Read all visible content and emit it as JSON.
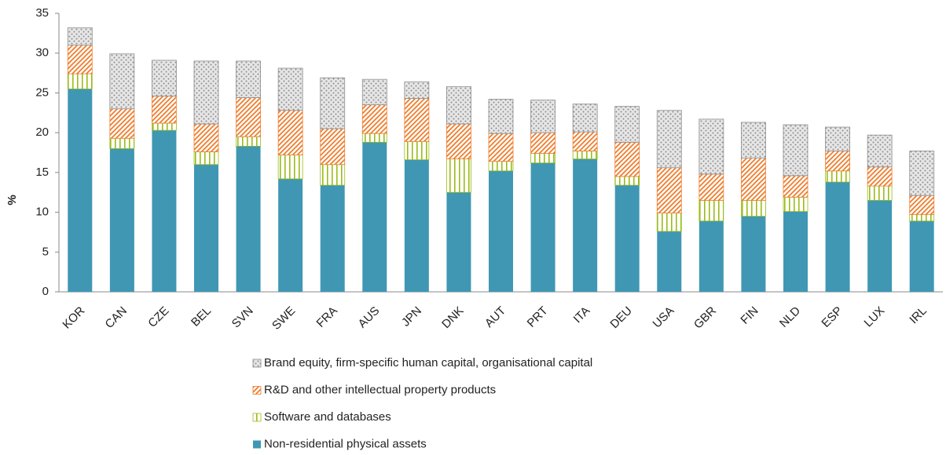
{
  "chart_data": {
    "type": "stacked_bar",
    "y_label": "%",
    "categories": [
      "KOR",
      "CAN",
      "CZE",
      "BEL",
      "SVN",
      "SWE",
      "FRA",
      "AUS",
      "JPN",
      "DNK",
      "AUT",
      "PRT",
      "ITA",
      "DEU",
      "USA",
      "GBR",
      "FIN",
      "NLD",
      "ESP",
      "LUX",
      "IRL"
    ],
    "series": [
      {
        "name": "Non-residential physical assets",
        "color": "#3f97b4",
        "pattern": "solid",
        "values": [
          25.5,
          18,
          20.3,
          16,
          18.3,
          14.2,
          13.4,
          18.8,
          16.6,
          12.5,
          15.2,
          16.2,
          16.7,
          13.4,
          7.6,
          8.9,
          9.5,
          10.1,
          13.8,
          11.5,
          8.9
        ]
      },
      {
        "name": "Software and databases",
        "color": "#9bbb1a",
        "pattern": "vertical",
        "values": [
          1.9,
          1.3,
          0.9,
          1.6,
          1.2,
          3.0,
          2.6,
          1.1,
          2.3,
          4.2,
          1.2,
          1.2,
          1.0,
          1.1,
          2.3,
          2.6,
          2.0,
          1.8,
          1.4,
          1.8,
          0.8
        ]
      },
      {
        "name": "R&D and other intellectual property products",
        "color": "#ef7d2d",
        "pattern": "diagonal",
        "values": [
          3.6,
          3.7,
          3.4,
          3.5,
          4.9,
          5.6,
          4.5,
          3.6,
          5.4,
          4.4,
          3.5,
          2.6,
          2.4,
          4.3,
          5.7,
          3.3,
          5.3,
          2.7,
          2.5,
          2.4,
          2.4
        ]
      },
      {
        "name": "Brand equity, firm-specific human capital, organisational capital",
        "color": "#8c8c8c",
        "pattern": "dots",
        "values": [
          2.2,
          6.9,
          4.5,
          7.9,
          4.6,
          5.3,
          6.4,
          3.2,
          2.1,
          4.7,
          4.3,
          4.1,
          3.5,
          4.5,
          7.2,
          6.9,
          4.5,
          6.4,
          3.0,
          4.0,
          5.6
        ]
      }
    ],
    "ylim": [
      0,
      35
    ],
    "yticks": [
      0,
      5,
      10,
      15,
      20,
      25,
      30,
      35
    ],
    "legend": "bottom"
  }
}
